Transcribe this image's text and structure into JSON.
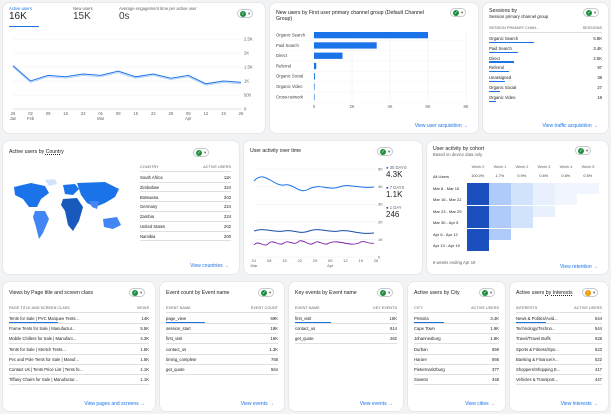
{
  "colors": {
    "accent": "#1a73e8",
    "light": "#aecbfa",
    "green": "#1e8e3e",
    "purple": "#7b1fa2",
    "dark_blue": "#174ea6"
  },
  "overview": {
    "metrics": [
      {
        "label": "Active users",
        "value": "16K"
      },
      {
        "label": "New users",
        "value": "15K"
      },
      {
        "label": "Average engagement time per active user",
        "value": "0s"
      }
    ],
    "y_ticks": [
      "2.5K",
      "2K",
      "1.5K",
      "1K",
      "500",
      "0"
    ],
    "x_ticks": [
      "26\nJan",
      "02\nFeb",
      "09",
      "16",
      "23",
      "01\nMar",
      "08",
      "15",
      "22",
      "29",
      "05\nApr",
      "12",
      "19",
      "26"
    ],
    "chart_data": {
      "type": "line",
      "title": "",
      "x": [
        "Jan 26",
        "Feb 02",
        "Feb 09",
        "Feb 16",
        "Feb 23",
        "Mar 01",
        "Mar 08",
        "Mar 15",
        "Mar 22",
        "Mar 29",
        "Apr 05",
        "Apr 12",
        "Apr 19",
        "Apr 26"
      ],
      "series": [
        {
          "name": "Active users",
          "values": [
            1550,
            1000,
            1200,
            1150,
            1250,
            1200,
            1350,
            1150,
            1250,
            1100,
            1200,
            900,
            1000,
            950
          ]
        },
        {
          "name": "",
          "values": [
            1500,
            950,
            1150,
            1100,
            1200,
            1150,
            1300,
            1100,
            1200,
            1050,
            1150,
            850,
            950,
            900
          ]
        }
      ],
      "ylim": [
        0,
        2500
      ]
    }
  },
  "channel_group": {
    "title": "New users by First user primary channel group (Default Channel Group)",
    "link": "View user acquisition",
    "chart_data": {
      "type": "bar",
      "categories": [
        "Organic Search",
        "Paid Search",
        "Direct",
        "Referral",
        "Organic Social",
        "Organic Video",
        "Cross-network"
      ],
      "values": [
        6000,
        3300,
        1500,
        120,
        50,
        20,
        10
      ],
      "x_ticks": [
        "0",
        "2K",
        "4K",
        "6K",
        "8K"
      ],
      "xlim": [
        0,
        8000
      ]
    }
  },
  "sessions": {
    "title": "Sessions by",
    "subtitle": "Session primary channel group",
    "col1": "SESSION PRIMARY CHAN...",
    "col2": "SESSIONS",
    "rows": [
      {
        "label": "Organic Search",
        "value": "5.8K"
      },
      {
        "label": "Paid Search",
        "value": "3.4K"
      },
      {
        "label": "Direct",
        "value": "2.5K"
      },
      {
        "label": "Referral",
        "value": "97"
      },
      {
        "label": "Unassigned",
        "value": "38"
      },
      {
        "label": "Organic Social",
        "value": "27"
      },
      {
        "label": "Organic Video",
        "value": "19"
      }
    ],
    "link": "View traffic acquisition"
  },
  "country": {
    "title": "Active users",
    "by": "by",
    "dimension": "Country",
    "col1": "COUNTRY",
    "col2": "ACTIVE USERS",
    "rows": [
      {
        "label": "South Africa",
        "value": "11K"
      },
      {
        "label": "Zimbabwe",
        "value": "324"
      },
      {
        "label": "Botswana",
        "value": "203"
      },
      {
        "label": "Germany",
        "value": "224"
      },
      {
        "label": "Zambia",
        "value": "224"
      },
      {
        "label": "United States",
        "value": "202"
      },
      {
        "label": "Namibia",
        "value": "200"
      }
    ],
    "link": "View countries"
  },
  "activity": {
    "title": "User activity over time",
    "legend": [
      {
        "label": "30 DAYS",
        "value": "4.3K"
      },
      {
        "label": "7 DAYS",
        "value": "1.1K"
      },
      {
        "label": "1 DAY",
        "value": "246"
      }
    ],
    "y_ticks": [
      "5K",
      "4K",
      "3K",
      "2K",
      "1K",
      "0"
    ],
    "x_ticks": [
      "01\nMar",
      "08",
      "15",
      "22",
      "29",
      "05\nApr",
      "12",
      "19",
      "26"
    ]
  },
  "cohort": {
    "title": "User activity by cohort",
    "subtitle": "Based on device data only",
    "weeks": [
      "Week 0",
      "Week 1",
      "Week 2",
      "Week 3",
      "Week 4",
      "Week 5"
    ],
    "rows": [
      {
        "label": "All Users",
        "values": [
          "100.0%",
          "1.7%",
          "0.9%",
          "0.6%",
          "0.6%",
          "0.5%"
        ]
      },
      {
        "label": "Mar 8 - Mar 15",
        "values": []
      },
      {
        "label": "Mar 16 - Mar 22",
        "values": []
      },
      {
        "label": "Mar 23 - Mar 29",
        "values": []
      },
      {
        "label": "Mar 30 - Apr 5",
        "values": []
      },
      {
        "label": "Apr 6 - Apr 12",
        "values": []
      },
      {
        "label": "Apr 13 - Apr 19",
        "values": []
      }
    ],
    "footer": "6 weeks ending Apr 19",
    "link": "View retention"
  },
  "pages": {
    "title": "Views by Page title and screen class",
    "col1": "PAGE TITLE AND SCREEN CLASS",
    "col2": "VIEWS",
    "rows": [
      {
        "label": "Tents for Sale | PVC Marquee Tents...",
        "value": "14K"
      },
      {
        "label": "Frame Tents for Sale | Manufactur...",
        "value": "5.5K"
      },
      {
        "label": "Mobile Chillers for Sale | Manufact...",
        "value": "4.3K"
      },
      {
        "label": "Tents for Sale | Stretch Tents...",
        "value": "1.5K"
      },
      {
        "label": "Pvc and Pole Tents for Sale | Manuf...",
        "value": "1.5K"
      },
      {
        "label": "Contact Us | Tents Price List | Tents fo...",
        "value": "1.1K"
      },
      {
        "label": "Tiffany Chairs for Sale | Manufactur...",
        "value": "1.1K"
      }
    ],
    "link": "View pages and screens"
  },
  "events": {
    "title": "Event count by Event name",
    "col1": "EVENT NAME",
    "col2": "EVENT COUNT",
    "rows": [
      {
        "label": "page_view",
        "value": "69K"
      },
      {
        "label": "session_start",
        "value": "18K"
      },
      {
        "label": "first_visit",
        "value": "16K"
      },
      {
        "label": "contact_us",
        "value": "1.3K"
      },
      {
        "label": "timing_complete",
        "value": "768"
      },
      {
        "label": "get_quote",
        "value": "564"
      }
    ],
    "link": "View events"
  },
  "key_events": {
    "title": "Key events by Event name",
    "col1": "EVENT NAME",
    "col2": "KEY EVENTS",
    "rows": [
      {
        "label": "first_visit",
        "value": "16K"
      },
      {
        "label": "contact_us",
        "value": "914"
      },
      {
        "label": "get_quote",
        "value": "262"
      }
    ],
    "link": "View events"
  },
  "city": {
    "title": "Active users by City",
    "col1": "CITY",
    "col2": "ACTIVE USERS",
    "rows": [
      {
        "label": "Pretoria",
        "value": "3.4K"
      },
      {
        "label": "Cape Town",
        "value": "1.9K"
      },
      {
        "label": "Johannesburg",
        "value": "1.8K"
      },
      {
        "label": "Durban",
        "value": "659"
      },
      {
        "label": "Harare",
        "value": "566"
      },
      {
        "label": "Pietermaritzburg",
        "value": "377"
      },
      {
        "label": "Soweto",
        "value": "348"
      }
    ],
    "link": "View cities"
  },
  "interests": {
    "title": "Active users",
    "dimension": "by Interests",
    "col1": "INTERESTS",
    "col2": "ACTIVE USERS",
    "rows": [
      {
        "label": "News & Politics/Avid...",
        "value": "544"
      },
      {
        "label": "Technology/Techno...",
        "value": "544"
      },
      {
        "label": "Travel/Travel Buffs",
        "value": "528"
      },
      {
        "label": "Sports & Fitness/Spo...",
        "value": "523"
      },
      {
        "label": "Banking & Finance/A...",
        "value": "522"
      },
      {
        "label": "Shoppers/Shopping E...",
        "value": "417"
      },
      {
        "label": "Vehicles & Transport...",
        "value": "447"
      }
    ],
    "link": "View interests"
  }
}
